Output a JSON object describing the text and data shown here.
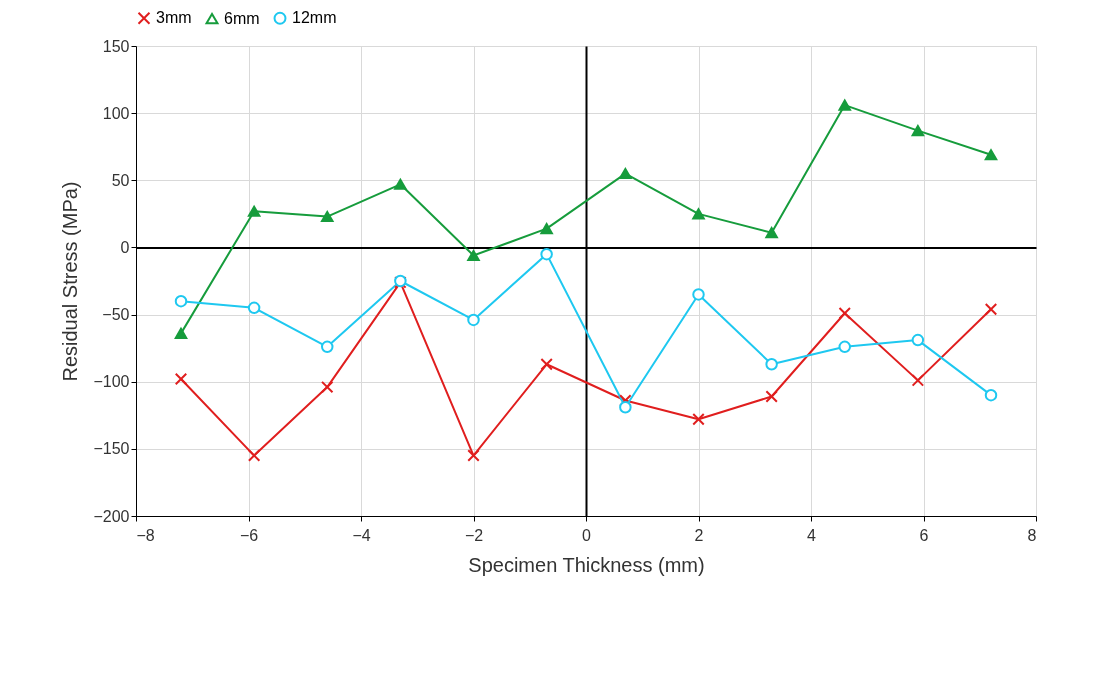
{
  "chart_data": {
    "type": "line",
    "xlabel": "Specimen Thickness (mm)",
    "ylabel": "Residual Stress (MPa)",
    "x": [
      -7.2,
      -5.9,
      -4.6,
      -3.3,
      -2.0,
      -0.7,
      0.7,
      2.0,
      3.3,
      4.6,
      5.9,
      7.2
    ],
    "series": [
      {
        "name": "3mm",
        "color": "#e01e1e",
        "marker": "cross",
        "values": [
          -98,
          -155,
          -104,
          -26,
          -155,
          -87,
          -114,
          -128,
          -111,
          -49,
          -99,
          -46
        ]
      },
      {
        "name": "6mm",
        "color": "#169c3c",
        "marker": "triangle",
        "values": [
          -64,
          27,
          23,
          47,
          -6,
          14,
          55,
          25,
          11,
          106,
          87,
          69
        ]
      },
      {
        "name": "12mm",
        "color": "#1ec8f0",
        "marker": "circle",
        "values": [
          -40,
          -45,
          -74,
          -25,
          -54,
          -5,
          -119,
          -35,
          -87,
          -74,
          -69,
          -110
        ]
      }
    ],
    "xlim": [
      -8,
      8
    ],
    "xticks": [
      -8,
      -6,
      -4,
      -2,
      0,
      2,
      4,
      6,
      8
    ],
    "ylim": [
      -200,
      150
    ],
    "yticks": [
      -200,
      -150,
      -100,
      -50,
      0,
      50,
      100,
      150
    ],
    "grid": true,
    "legend": "top",
    "line_style": "solid"
  }
}
